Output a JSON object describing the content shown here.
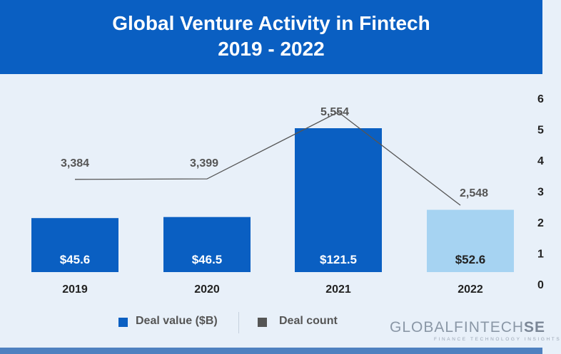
{
  "header": {
    "title_line1": "Global Venture Activity in Fintech",
    "title_line2": "2019 - 2022"
  },
  "chart_data": {
    "type": "bar",
    "categories": [
      "2019",
      "2020",
      "2021",
      "2022"
    ],
    "series": [
      {
        "name": "Deal value ($B)",
        "type": "bar",
        "values": [
          45.6,
          46.5,
          121.5,
          52.6
        ],
        "labels": [
          "$45.6",
          "$46.5",
          "$121.5",
          "$52.6"
        ],
        "colors": [
          "#0a5fc2",
          "#0a5fc2",
          "#0a5fc2",
          "#a6d3f2"
        ],
        "label_colors": [
          "#ffffff",
          "#ffffff",
          "#ffffff",
          "#222222"
        ],
        "axis": "left",
        "ylim": [
          0,
          140
        ]
      },
      {
        "name": "Deal count",
        "type": "line",
        "values": [
          3384,
          3399,
          5554,
          2548
        ],
        "labels": [
          "3,384",
          "3,399",
          "5,554",
          "2,548"
        ],
        "color": "#555555",
        "axis": "right",
        "ylim": [
          0,
          6000
        ]
      }
    ],
    "right_axis_ticks": [
      "0",
      "1",
      "2",
      "3",
      "4",
      "5",
      "6"
    ],
    "right_axis_tick_values": [
      0,
      1000,
      2000,
      3000,
      4000,
      5000,
      6000
    ],
    "legend_position": "bottom",
    "grid": false
  },
  "legend": {
    "deal_value_label": "Deal value ($B)",
    "deal_count_label": "Deal count",
    "deal_value_color": "#0a5fc2",
    "deal_count_color": "#555555"
  },
  "brand": {
    "name_part1": "GLOBALFINTECH",
    "name_part2": "SE",
    "tagline": "FINANCE TECHNOLOGY INSIGHTS"
  },
  "colors": {
    "header": "#0a5fc2",
    "background": "#e8f0f9",
    "footer": "#4f81c0"
  }
}
